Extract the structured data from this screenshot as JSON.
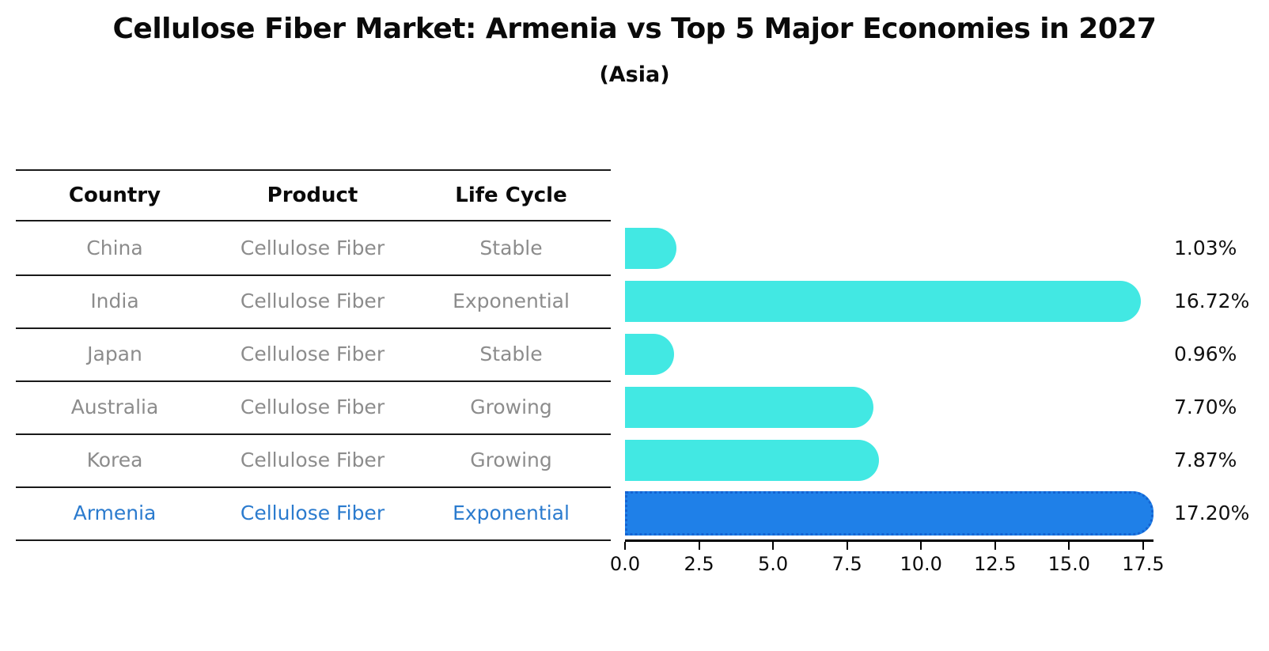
{
  "title": "Cellulose Fiber Market: Armenia vs Top 5 Major Economies in 2027",
  "subtitle": "(Asia)",
  "table": {
    "headers": {
      "country": "Country",
      "product": "Product",
      "life_cycle": "Life Cycle"
    }
  },
  "rows": [
    {
      "country": "China",
      "product": "Cellulose Fiber",
      "life_cycle": "Stable",
      "pct": "1.03%",
      "value": 1.03,
      "highlight": false
    },
    {
      "country": "India",
      "product": "Cellulose Fiber",
      "life_cycle": "Exponential",
      "pct": "16.72%",
      "value": 16.72,
      "highlight": false
    },
    {
      "country": "Japan",
      "product": "Cellulose Fiber",
      "life_cycle": "Stable",
      "pct": "0.96%",
      "value": 0.96,
      "highlight": false
    },
    {
      "country": "Australia",
      "product": "Cellulose Fiber",
      "life_cycle": "Growing",
      "pct": "7.70%",
      "value": 7.7,
      "highlight": false
    },
    {
      "country": "Korea",
      "product": "Cellulose Fiber",
      "life_cycle": "Growing",
      "pct": "7.87%",
      "value": 7.87,
      "highlight": false
    },
    {
      "country": "Armenia",
      "product": "Cellulose Fiber",
      "life_cycle": "Exponential",
      "pct": "17.20%",
      "value": 17.2,
      "highlight": true
    }
  ],
  "colors": {
    "bar_color": "#42e8e3",
    "hl_fill": "#1f80e8",
    "hl_edge": "#1463d2",
    "hl_text": "#2b7bce"
  },
  "chart_data": {
    "type": "bar",
    "orientation": "horizontal",
    "title": "Cellulose Fiber Market: Armenia vs Top 5 Major Economies in 2027",
    "subtitle": "(Asia)",
    "categories": [
      "China",
      "India",
      "Japan",
      "Australia",
      "Korea",
      "Armenia"
    ],
    "values": [
      1.03,
      16.72,
      0.96,
      7.7,
      7.87,
      17.2
    ],
    "value_labels": [
      "1.03%",
      "16.72%",
      "0.96%",
      "7.70%",
      "7.87%",
      "17.20%"
    ],
    "series_meta": {
      "product": "Cellulose Fiber",
      "life_cycle": [
        "Stable",
        "Exponential",
        "Stable",
        "Growing",
        "Growing",
        "Exponential"
      ]
    },
    "highlight_category": "Armenia",
    "xlabel": "",
    "ylabel": "",
    "xlim": [
      0,
      17.85
    ],
    "x_tick_values": [
      0.0,
      2.5,
      5.0,
      7.5,
      10.0,
      12.5,
      15.0,
      17.5
    ],
    "x_tick_labels": [
      "0.0",
      "2.5",
      "5.0",
      "7.5",
      "10.0",
      "12.5",
      "15.0",
      "17.5"
    ],
    "grid": false,
    "legend": "none",
    "bar_color": "#42e8e3",
    "highlight_fill": "#1f80e8",
    "highlight_edge_style": "dotted",
    "highlight_edge_color": "#1463d2"
  }
}
